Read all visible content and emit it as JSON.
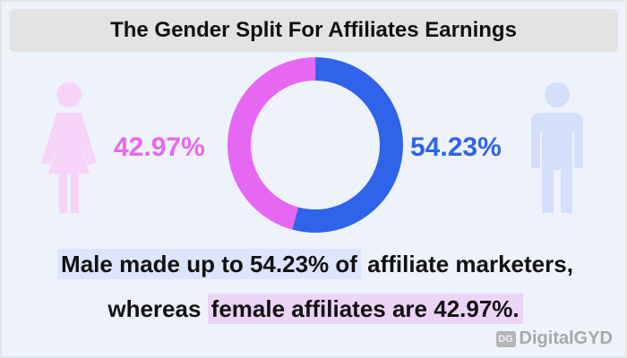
{
  "header": {
    "title": "The Gender Split For Affiliates Earnings"
  },
  "colors": {
    "female": "#e668f2",
    "male": "#2f63ea",
    "female_icon": "#f6d4f7",
    "male_icon": "#d4dffa"
  },
  "icons": {
    "female": "female-person-icon",
    "male": "male-person-icon"
  },
  "chart_data": {
    "type": "pie",
    "subtype": "donut",
    "slices": [
      {
        "label": "Male",
        "value": 54.23,
        "color": "#2f63ea"
      },
      {
        "label": "Female",
        "value": 42.97,
        "color": "#e668f2"
      }
    ],
    "labels": {
      "female": "42.97%",
      "male": "54.23%"
    }
  },
  "caption": {
    "line1_highlight": "Male made up to 54.23% of",
    "line1_rest": " affiliate marketers,",
    "line2_lead": "whereas ",
    "line2_highlight": "female affiliates are 42.97%."
  },
  "brand": {
    "mark": "DG",
    "name": "DigitalGYD"
  }
}
